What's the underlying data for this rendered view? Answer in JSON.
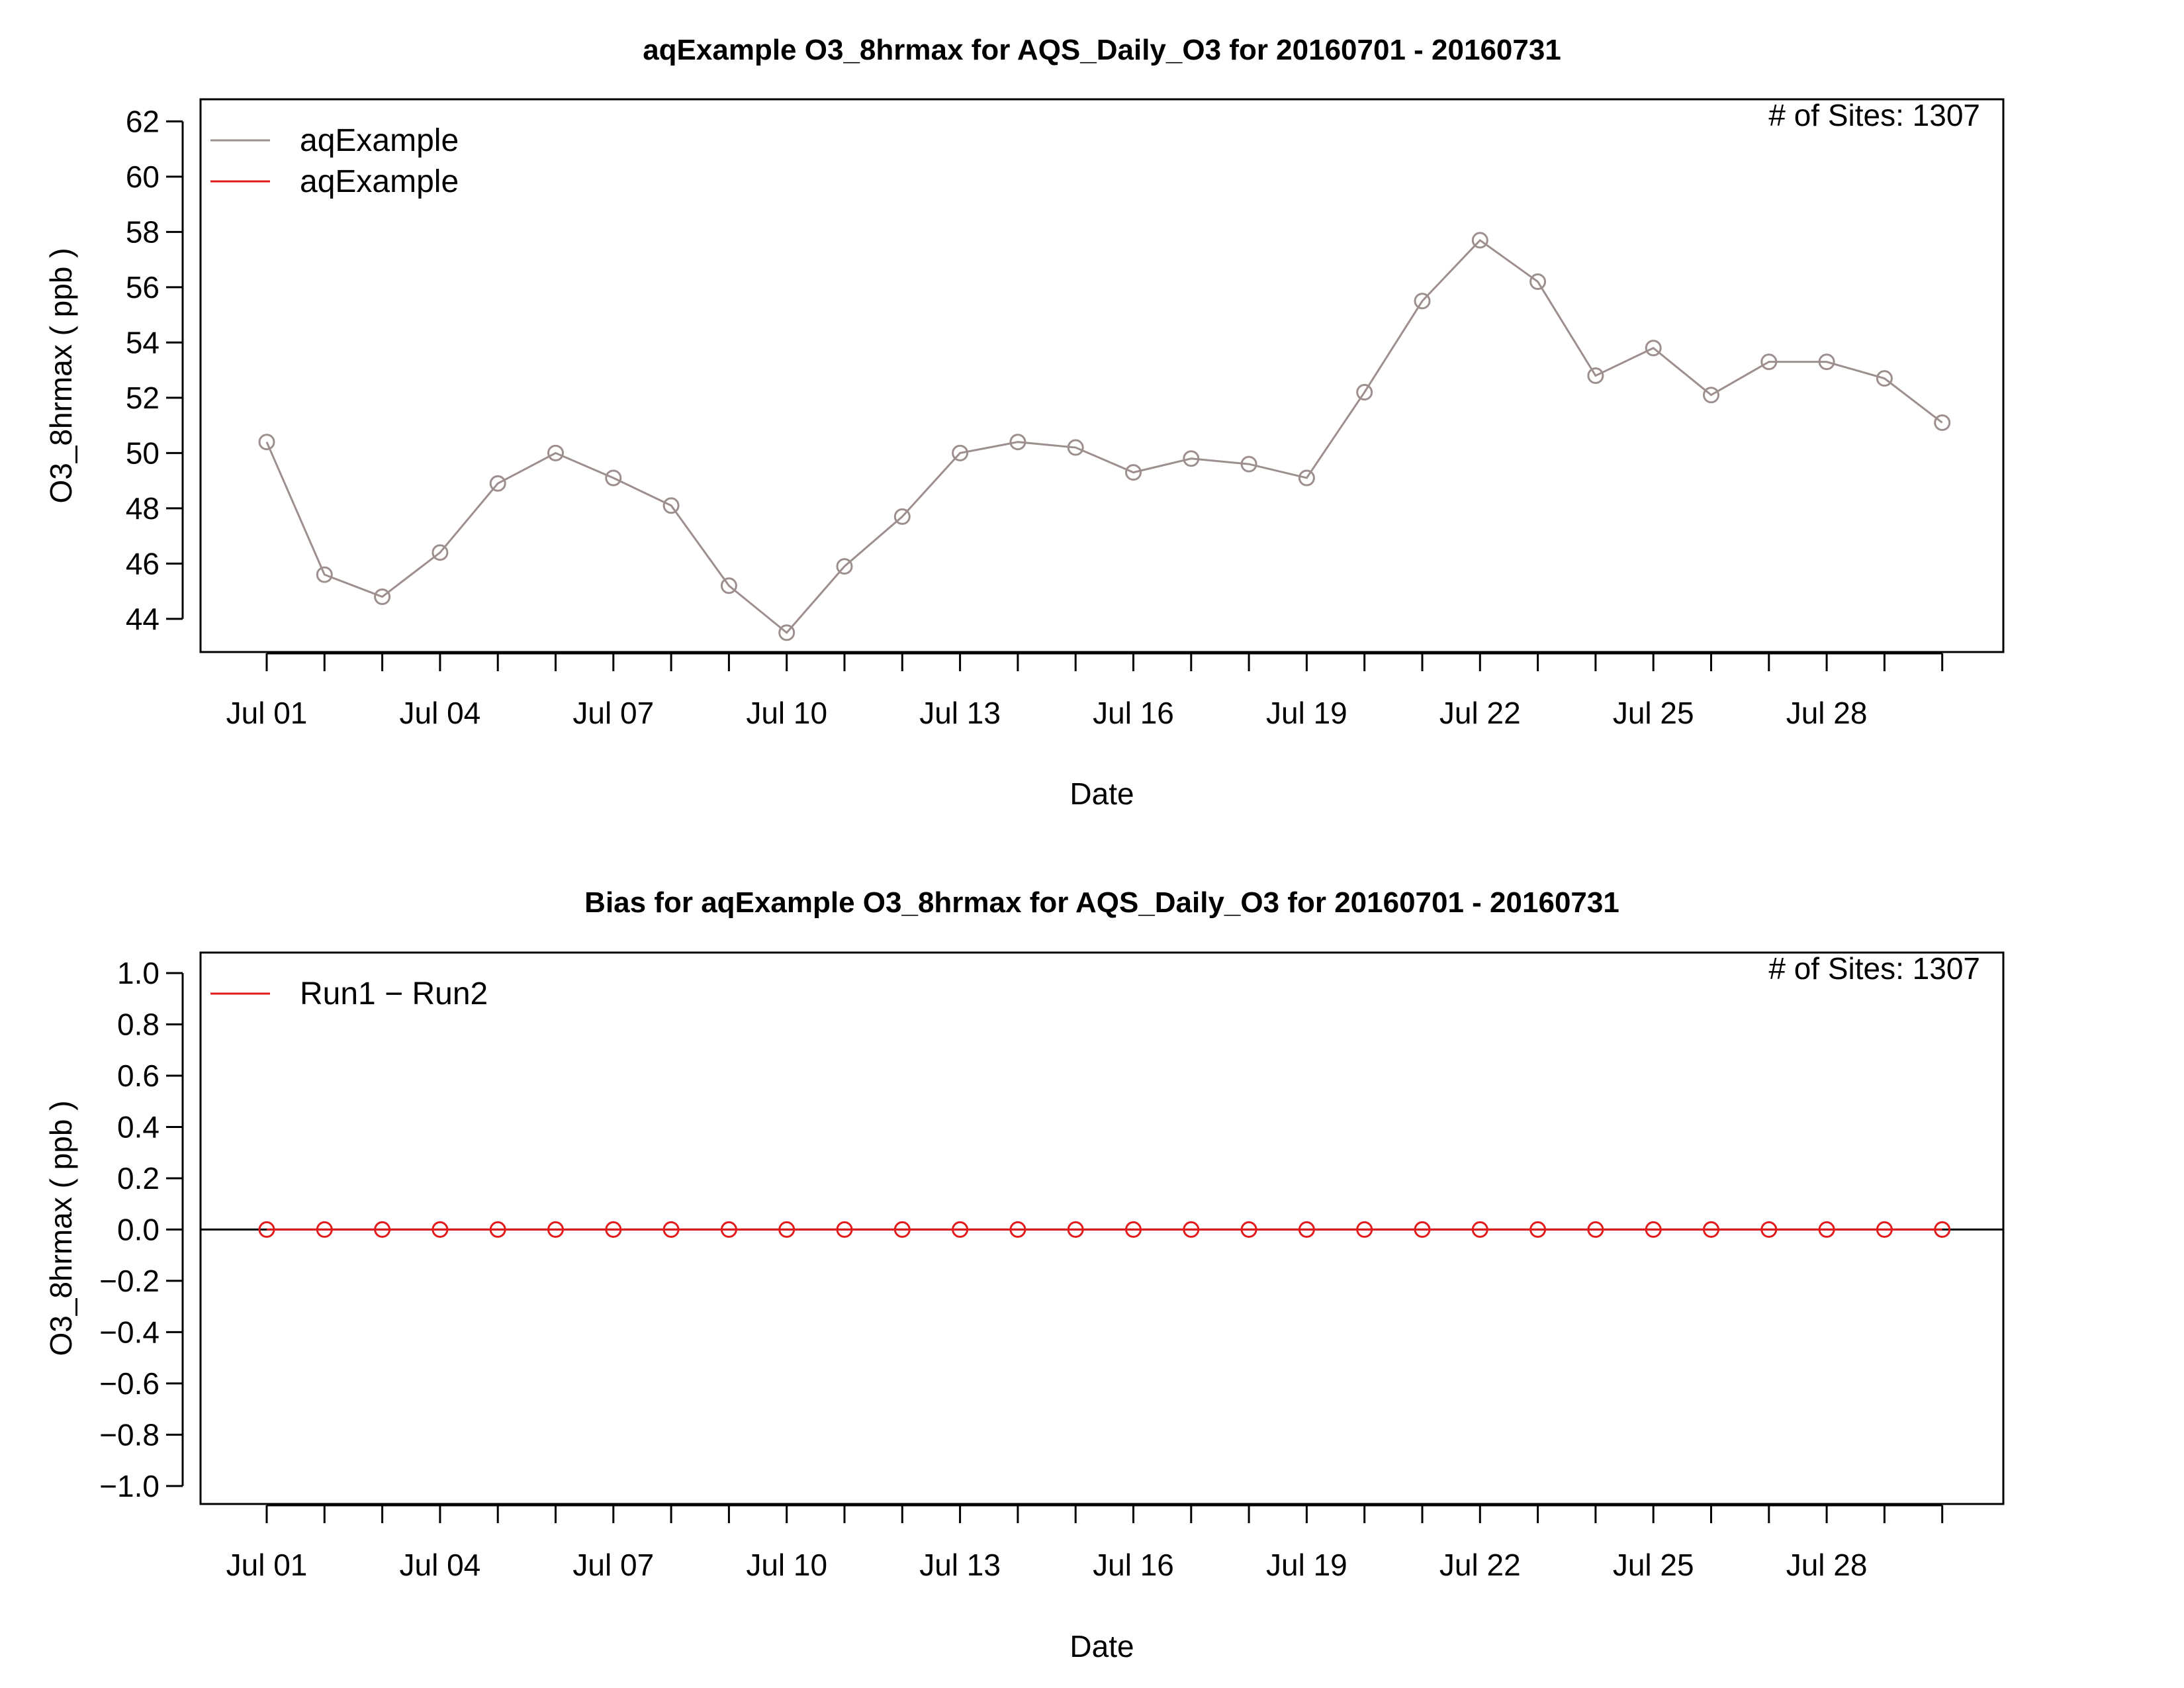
{
  "chart_data": [
    {
      "type": "line",
      "title": "aqExample O3_8hrmax for AQS_Daily_O3 for 20160701 - 20160731",
      "xlabel": "Date",
      "ylabel": "O3_8hrmax ( ppb )",
      "sites_text": "# of Sites: 1307",
      "ylim": [
        42.8,
        62.8
      ],
      "yticks": [
        44,
        46,
        48,
        50,
        52,
        54,
        56,
        58,
        60,
        62
      ],
      "x": [
        "2016-07-01",
        "2016-07-02",
        "2016-07-03",
        "2016-07-04",
        "2016-07-05",
        "2016-07-06",
        "2016-07-07",
        "2016-07-08",
        "2016-07-09",
        "2016-07-10",
        "2016-07-11",
        "2016-07-12",
        "2016-07-13",
        "2016-07-14",
        "2016-07-15",
        "2016-07-16",
        "2016-07-17",
        "2016-07-18",
        "2016-07-19",
        "2016-07-20",
        "2016-07-21",
        "2016-07-22",
        "2016-07-23",
        "2016-07-24",
        "2016-07-25",
        "2016-07-26",
        "2016-07-27",
        "2016-07-28",
        "2016-07-29",
        "2016-07-30"
      ],
      "xtick_labels": [
        "Jul 01",
        "Jul 04",
        "Jul 07",
        "Jul 10",
        "Jul 13",
        "Jul 16",
        "Jul 19",
        "Jul 22",
        "Jul 25",
        "Jul 28"
      ],
      "legend": {
        "placement": "top-left",
        "entries": [
          {
            "label": "aqExample",
            "color": "#9e8f8f"
          },
          {
            "label": "aqExample",
            "color": "#e31a1c"
          }
        ]
      },
      "series": [
        {
          "name": "aqExample",
          "color": "#9e8f8f",
          "values": [
            50.4,
            45.6,
            44.8,
            46.4,
            48.9,
            50.0,
            49.1,
            48.1,
            45.2,
            43.5,
            45.9,
            47.7,
            50.0,
            50.4,
            50.2,
            49.3,
            49.8,
            49.6,
            49.1,
            52.2,
            55.5,
            57.7,
            56.2,
            52.8,
            53.8,
            52.1,
            53.3,
            53.3,
            52.7,
            51.1
          ]
        }
      ]
    },
    {
      "type": "line",
      "title": "Bias for aqExample O3_8hrmax for AQS_Daily_O3 for 20160701 - 20160731",
      "xlabel": "Date",
      "ylabel": "O3_8hrmax ( ppb )",
      "sites_text": "# of Sites: 1307",
      "ylim": [
        -1.07,
        1.08
      ],
      "yticks": [
        "-1.0",
        "-0.8",
        "-0.6",
        "-0.4",
        "-0.2",
        "0.0",
        "0.2",
        "0.4",
        "0.6",
        "0.8",
        "1.0"
      ],
      "reference_line": 0,
      "x": [
        "2016-07-01",
        "2016-07-02",
        "2016-07-03",
        "2016-07-04",
        "2016-07-05",
        "2016-07-06",
        "2016-07-07",
        "2016-07-08",
        "2016-07-09",
        "2016-07-10",
        "2016-07-11",
        "2016-07-12",
        "2016-07-13",
        "2016-07-14",
        "2016-07-15",
        "2016-07-16",
        "2016-07-17",
        "2016-07-18",
        "2016-07-19",
        "2016-07-20",
        "2016-07-21",
        "2016-07-22",
        "2016-07-23",
        "2016-07-24",
        "2016-07-25",
        "2016-07-26",
        "2016-07-27",
        "2016-07-28",
        "2016-07-29",
        "2016-07-30"
      ],
      "xtick_labels": [
        "Jul 01",
        "Jul 04",
        "Jul 07",
        "Jul 10",
        "Jul 13",
        "Jul 16",
        "Jul 19",
        "Jul 22",
        "Jul 25",
        "Jul 28"
      ],
      "legend": {
        "placement": "top-left",
        "entries": [
          {
            "label": "Run1 − Run2",
            "color": "#e31a1c"
          }
        ]
      },
      "series": [
        {
          "name": "Run1 − Run2",
          "color": "#e31a1c",
          "values": [
            0,
            0,
            0,
            0,
            0,
            0,
            0,
            0,
            0,
            0,
            0,
            0,
            0,
            0,
            0,
            0,
            0,
            0,
            0,
            0,
            0,
            0,
            0,
            0,
            0,
            0,
            0,
            0,
            0,
            0
          ]
        }
      ]
    }
  ]
}
